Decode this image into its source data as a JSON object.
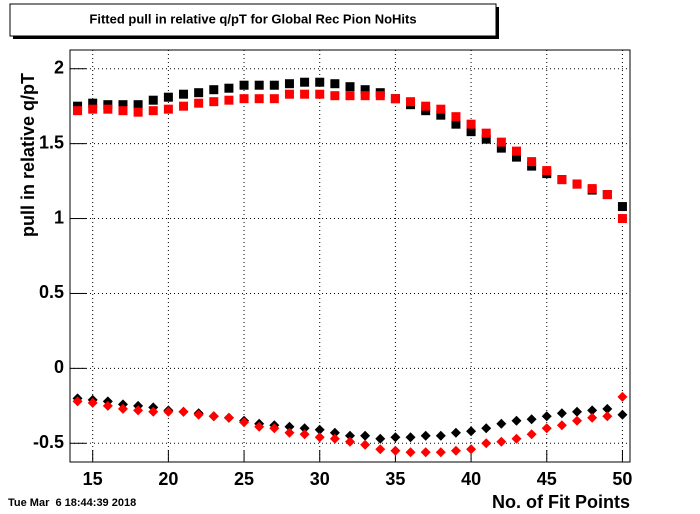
{
  "chart_data": {
    "type": "scatter",
    "title": "Fitted pull in relative q/pT for Global Rec Pion NoHits",
    "x_label": "No. of Fit Points",
    "y_label": "pull in relative q/pT",
    "timestamp": "Tue Mar  6 18:44:39 2018",
    "x": [
      14,
      15,
      16,
      17,
      18,
      19,
      20,
      21,
      22,
      23,
      24,
      25,
      26,
      27,
      28,
      29,
      30,
      31,
      32,
      33,
      34,
      35,
      36,
      37,
      38,
      39,
      40,
      41,
      42,
      43,
      44,
      45,
      46,
      47,
      48,
      49,
      50
    ],
    "series": [
      {
        "color": "#000000",
        "marker": "square",
        "values": [
          1.75,
          1.77,
          1.76,
          1.76,
          1.76,
          1.79,
          1.81,
          1.83,
          1.84,
          1.86,
          1.87,
          1.89,
          1.89,
          1.89,
          1.9,
          1.91,
          1.91,
          1.9,
          1.88,
          1.86,
          1.84,
          1.8,
          1.76,
          1.72,
          1.69,
          1.63,
          1.58,
          1.53,
          1.47,
          1.41,
          1.35,
          1.3,
          1.26,
          1.23,
          1.19,
          1.16,
          1.08
        ]
      },
      {
        "color": "#ff0000",
        "marker": "square",
        "values": [
          1.72,
          1.73,
          1.73,
          1.72,
          1.71,
          1.72,
          1.73,
          1.75,
          1.77,
          1.78,
          1.79,
          1.8,
          1.8,
          1.8,
          1.83,
          1.83,
          1.83,
          1.82,
          1.82,
          1.82,
          1.82,
          1.8,
          1.78,
          1.75,
          1.73,
          1.68,
          1.63,
          1.57,
          1.51,
          1.45,
          1.38,
          1.32,
          1.26,
          1.23,
          1.2,
          1.16,
          1.0
        ]
      },
      {
        "color": "#000000",
        "marker": "diamond",
        "values": [
          -0.2,
          -0.21,
          -0.22,
          -0.24,
          -0.25,
          -0.26,
          -0.28,
          -0.29,
          -0.3,
          -0.32,
          -0.33,
          -0.35,
          -0.37,
          -0.38,
          -0.39,
          -0.4,
          -0.41,
          -0.43,
          -0.45,
          -0.45,
          -0.47,
          -0.46,
          -0.46,
          -0.45,
          -0.45,
          -0.43,
          -0.42,
          -0.4,
          -0.37,
          -0.35,
          -0.34,
          -0.32,
          -0.3,
          -0.29,
          -0.28,
          -0.27,
          -0.31
        ]
      },
      {
        "color": "#ff0000",
        "marker": "diamond",
        "values": [
          -0.22,
          -0.23,
          -0.25,
          -0.27,
          -0.28,
          -0.29,
          -0.29,
          -0.29,
          -0.31,
          -0.32,
          -0.33,
          -0.36,
          -0.39,
          -0.4,
          -0.43,
          -0.44,
          -0.46,
          -0.47,
          -0.49,
          -0.51,
          -0.54,
          -0.55,
          -0.56,
          -0.56,
          -0.56,
          -0.55,
          -0.54,
          -0.5,
          -0.49,
          -0.47,
          -0.44,
          -0.4,
          -0.38,
          -0.35,
          -0.33,
          -0.32,
          -0.19
        ]
      }
    ],
    "xlim": [
      13.5,
      50.5
    ],
    "xticks": [
      15,
      20,
      25,
      30,
      35,
      40,
      45,
      50
    ],
    "ylim": [
      -0.625,
      2.125
    ],
    "yticks": [
      -0.5,
      0,
      0.5,
      1,
      1.5,
      2
    ],
    "grid": true
  }
}
